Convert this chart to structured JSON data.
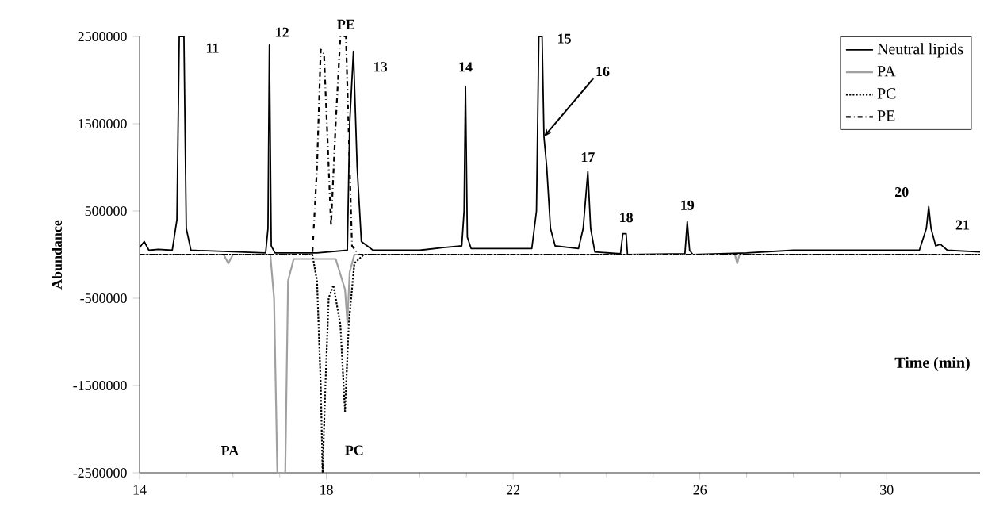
{
  "chart_data": {
    "type": "line",
    "xlabel": "Time (min)",
    "ylabel": "Abundance",
    "xlim": [
      14,
      32
    ],
    "xticks": [
      14,
      18,
      22,
      26,
      30
    ],
    "ylim": [
      -2500000,
      2500000
    ],
    "yticks": [
      -2500000,
      -1500000,
      -500000,
      500000,
      1500000,
      2500000
    ],
    "legend": "top right",
    "grid": false,
    "series": [
      {
        "name": "Neutral lipids",
        "color": "#000000",
        "line_style": "solid",
        "x": [
          14.0,
          14.1,
          14.2,
          14.4,
          14.7,
          14.8,
          14.85,
          14.95,
          15.0,
          15.1,
          16.7,
          16.75,
          16.78,
          16.82,
          16.9,
          17.8,
          18.45,
          18.5,
          18.58,
          18.66,
          18.75,
          19.0,
          20.0,
          20.5,
          20.9,
          20.95,
          20.98,
          21.02,
          21.1,
          22.4,
          22.5,
          22.55,
          22.62,
          22.66,
          22.72,
          22.8,
          22.9,
          23.4,
          23.5,
          23.6,
          23.66,
          23.75,
          24.3,
          24.35,
          24.42,
          24.45,
          25.68,
          25.73,
          25.78,
          25.85,
          27.0,
          28.0,
          30.0,
          30.7,
          30.85,
          30.9,
          30.95,
          31.05,
          31.15,
          31.3,
          32.0
        ],
        "values": [
          80000,
          150000,
          50000,
          60000,
          50000,
          400000,
          2500000,
          2500000,
          300000,
          50000,
          20000,
          300000,
          2400000,
          100000,
          20000,
          20000,
          50000,
          1500000,
          2330000,
          1000000,
          150000,
          50000,
          50000,
          80000,
          100000,
          500000,
          1930000,
          200000,
          70000,
          70000,
          500000,
          2500000,
          2500000,
          1350000,
          1000000,
          300000,
          100000,
          70000,
          300000,
          950000,
          300000,
          30000,
          10000,
          240000,
          240000,
          0,
          10000,
          380000,
          50000,
          0,
          20000,
          50000,
          50000,
          50000,
          300000,
          550000,
          300000,
          100000,
          120000,
          50000,
          30000
        ]
      },
      {
        "name": "PA",
        "color": "#a0a0a0",
        "line_style": "solid",
        "x": [
          14,
          15.8,
          15.9,
          16.0,
          16.8,
          16.88,
          16.95,
          17.12,
          17.18,
          17.3,
          18.2,
          18.4,
          18.45,
          18.5,
          18.6,
          26.75,
          26.8,
          26.85,
          32
        ],
        "values": [
          0,
          0,
          -100000,
          0,
          0,
          -500000,
          -2500000,
          -2500000,
          -300000,
          -50000,
          -50000,
          -400000,
          -780000,
          -200000,
          0,
          0,
          -100000,
          0,
          0
        ]
      },
      {
        "name": "PC",
        "color": "#000000",
        "line_style": "dotted",
        "x": [
          14,
          17.7,
          17.8,
          17.88,
          17.92,
          17.98,
          18.05,
          18.15,
          18.3,
          18.4,
          18.48,
          18.6,
          18.8,
          32
        ],
        "values": [
          0,
          0,
          -300000,
          -1500000,
          -2500000,
          -1500000,
          -500000,
          -350000,
          -800000,
          -1800000,
          -800000,
          -100000,
          0,
          0
        ]
      },
      {
        "name": "PE",
        "color": "#000000",
        "line_style": "dashed",
        "x": [
          14,
          17.7,
          17.8,
          17.88,
          17.95,
          18.05,
          18.1,
          18.2,
          18.3,
          18.42,
          18.5,
          18.55,
          18.7,
          32
        ],
        "values": [
          0,
          0,
          1000000,
          2350000,
          2300000,
          1000000,
          330000,
          1500000,
          2500000,
          2500000,
          1000000,
          100000,
          0,
          0
        ]
      }
    ],
    "annotations": [
      {
        "text": "11",
        "x": 14.95,
        "y": 2500000
      },
      {
        "text": "12",
        "x": 16.78,
        "y": 2400000
      },
      {
        "text": "PE",
        "x": 18.42,
        "y": 2500000
      },
      {
        "text": "13",
        "x": 18.58,
        "y": 2330000
      },
      {
        "text": "14",
        "x": 20.98,
        "y": 1930000
      },
      {
        "text": "15",
        "x": 22.62,
        "y": 2500000
      },
      {
        "text": "16",
        "x": 22.66,
        "y": 1350000
      },
      {
        "text": "17",
        "x": 23.6,
        "y": 950000
      },
      {
        "text": "18",
        "x": 24.42,
        "y": 240000
      },
      {
        "text": "19",
        "x": 25.73,
        "y": 380000
      },
      {
        "text": "20",
        "x": 30.9,
        "y": 550000
      },
      {
        "text": "21",
        "x": 31.15,
        "y": 120000
      },
      "PA",
      {
        "text": "PC",
        "x": 17.92,
        "y": -2500000
      }
    ]
  }
}
